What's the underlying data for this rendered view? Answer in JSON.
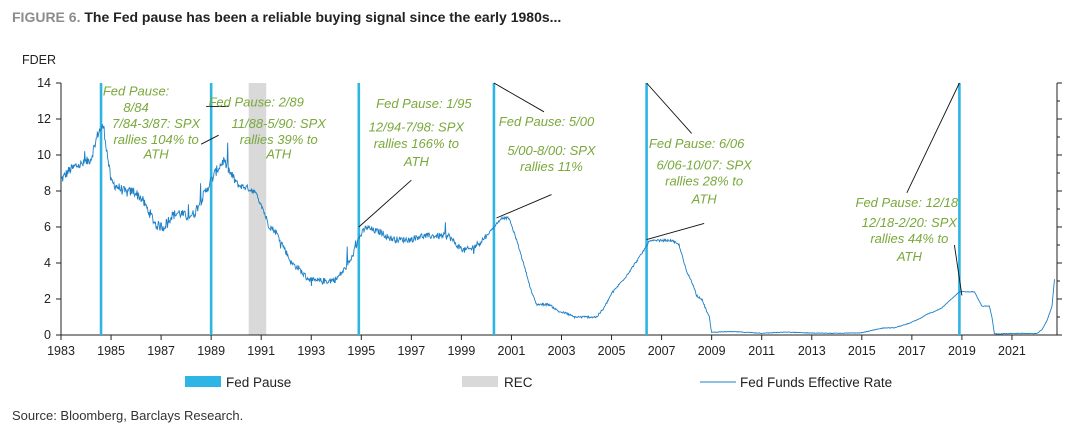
{
  "figure": {
    "number": "FIGURE 6.",
    "title": "The Fed pause has been a reliable buying signal since the early 1980s..."
  },
  "source": "Source: Bloomberg, Barclays Research.",
  "colors": {
    "pause": "#2fb4e6",
    "rate": "#1e7fc4",
    "rec": "#d9d9d9",
    "annotation": "#79a83b",
    "axis": "#222222"
  },
  "chart_data": {
    "type": "line",
    "ylabel": "FDER",
    "ylim": [
      0,
      14
    ],
    "yticks": [
      0,
      2,
      4,
      6,
      8,
      10,
      12,
      14
    ],
    "xlim": [
      1983,
      2022.8
    ],
    "xticks": [
      1983,
      1985,
      1987,
      1989,
      1991,
      1993,
      1995,
      1997,
      1999,
      2001,
      2003,
      2005,
      2007,
      2009,
      2011,
      2013,
      2015,
      2017,
      2019,
      2021
    ],
    "legend": [
      {
        "name": "Fed Pause",
        "kind": "bar"
      },
      {
        "name": "REC",
        "kind": "shade"
      },
      {
        "name": "Fed Funds Effective Rate",
        "kind": "line"
      }
    ],
    "fed_pauses": [
      1984.6,
      1989.0,
      1994.9,
      2000.3,
      2006.4,
      2018.9
    ],
    "recessions": [
      [
        1990.5,
        1991.2
      ]
    ],
    "series": [
      {
        "name": "Fed Funds Effective Rate",
        "x": [
          1983.0,
          1983.3,
          1983.6,
          1983.9,
          1984.2,
          1984.5,
          1984.7,
          1985.0,
          1985.3,
          1985.6,
          1985.9,
          1986.2,
          1986.5,
          1986.8,
          1987.1,
          1987.4,
          1987.7,
          1988.0,
          1988.3,
          1988.6,
          1988.9,
          1989.2,
          1989.5,
          1989.8,
          1990.1,
          1990.4,
          1990.7,
          1991.0,
          1991.3,
          1991.6,
          1991.9,
          1992.2,
          1992.5,
          1992.8,
          1993.1,
          1993.4,
          1993.7,
          1994.0,
          1994.3,
          1994.6,
          1994.9,
          1995.2,
          1995.5,
          1995.8,
          1996.1,
          1996.4,
          1996.7,
          1997.0,
          1997.3,
          1997.6,
          1997.9,
          1998.2,
          1998.5,
          1998.8,
          1999.1,
          1999.4,
          1999.7,
          2000.0,
          2000.3,
          2000.6,
          2000.9,
          2001.2,
          2001.5,
          2001.8,
          2002.0,
          2002.5,
          2002.9,
          2003.2,
          2003.5,
          2003.8,
          2004.1,
          2004.4,
          2004.7,
          2005.0,
          2005.3,
          2005.6,
          2005.9,
          2006.2,
          2006.5,
          2006.8,
          2007.1,
          2007.4,
          2007.7,
          2008.0,
          2008.2,
          2008.4,
          2008.6,
          2008.9,
          2009.0,
          2009.5,
          2010.0,
          2011.0,
          2012.0,
          2013.0,
          2014.0,
          2015.0,
          2015.9,
          2016.3,
          2016.9,
          2017.3,
          2017.6,
          2017.9,
          2018.2,
          2018.5,
          2018.9,
          2019.2,
          2019.5,
          2019.8,
          2020.1,
          2020.2,
          2020.3,
          2021.0,
          2021.5,
          2022.0,
          2022.2,
          2022.4,
          2022.6,
          2022.7
        ],
        "values": [
          8.6,
          9.1,
          9.4,
          9.5,
          9.8,
          11.3,
          11.6,
          8.5,
          8.2,
          7.9,
          8.0,
          7.6,
          6.9,
          6.1,
          6.0,
          6.6,
          6.8,
          6.6,
          6.7,
          7.5,
          8.3,
          9.1,
          9.7,
          8.9,
          8.3,
          8.2,
          8.0,
          7.3,
          6.1,
          5.7,
          4.9,
          4.0,
          3.7,
          3.2,
          3.0,
          3.0,
          3.0,
          3.1,
          3.6,
          4.2,
          5.4,
          6.0,
          5.8,
          5.7,
          5.4,
          5.3,
          5.3,
          5.3,
          5.5,
          5.5,
          5.5,
          5.5,
          5.5,
          5.0,
          4.7,
          4.8,
          5.1,
          5.5,
          6.0,
          6.5,
          6.5,
          5.3,
          3.9,
          2.4,
          1.7,
          1.7,
          1.3,
          1.2,
          1.0,
          1.0,
          1.0,
          1.0,
          1.5,
          2.3,
          2.8,
          3.3,
          3.9,
          4.5,
          5.2,
          5.25,
          5.25,
          5.25,
          5.0,
          3.5,
          3.0,
          2.2,
          2.0,
          1.0,
          0.15,
          0.18,
          0.18,
          0.1,
          0.16,
          0.11,
          0.09,
          0.13,
          0.4,
          0.4,
          0.65,
          0.9,
          1.15,
          1.3,
          1.5,
          1.9,
          2.4,
          2.4,
          2.4,
          1.6,
          1.6,
          1.0,
          0.06,
          0.08,
          0.09,
          0.08,
          0.3,
          0.8,
          1.6,
          3.1
        ]
      }
    ],
    "annotations": [
      {
        "text": "Fed Pause:",
        "x": 1986.0,
        "y": 13.3,
        "anchor": "middle"
      },
      {
        "text": "8/84",
        "x": 1986.0,
        "y": 12.4,
        "anchor": "middle"
      },
      {
        "text": "7/84-3/87: SPX",
        "x": 1986.8,
        "y": 11.5,
        "anchor": "middle"
      },
      {
        "text": "rallies 104% to",
        "x": 1986.8,
        "y": 10.6,
        "anchor": "middle"
      },
      {
        "text": "ATH",
        "x": 1986.8,
        "y": 9.8,
        "anchor": "middle"
      },
      {
        "text": "Fed Pause: 2/89",
        "x": 1990.8,
        "y": 12.7,
        "anchor": "middle"
      },
      {
        "text": "11/88-5/90: SPX",
        "x": 1991.7,
        "y": 11.5,
        "anchor": "middle"
      },
      {
        "text": "rallies 39% to",
        "x": 1991.7,
        "y": 10.6,
        "anchor": "middle"
      },
      {
        "text": "ATH",
        "x": 1991.7,
        "y": 9.8,
        "anchor": "middle"
      },
      {
        "text": "Fed Pause: 1/95",
        "x": 1997.5,
        "y": 12.6,
        "anchor": "middle"
      },
      {
        "text": "12/94-7/98: SPX",
        "x": 1997.2,
        "y": 11.3,
        "anchor": "middle"
      },
      {
        "text": "rallies 166% to",
        "x": 1997.2,
        "y": 10.4,
        "anchor": "middle"
      },
      {
        "text": "ATH",
        "x": 1997.2,
        "y": 9.4,
        "anchor": "middle"
      },
      {
        "text": "Fed Pause: 5/00",
        "x": 2002.4,
        "y": 11.6,
        "anchor": "middle"
      },
      {
        "text": "5/00-8/00: SPX",
        "x": 2002.6,
        "y": 10.0,
        "anchor": "middle"
      },
      {
        "text": "rallies 11%",
        "x": 2002.6,
        "y": 9.1,
        "anchor": "middle"
      },
      {
        "text": "Fed Pause:  6/06",
        "x": 2008.4,
        "y": 10.4,
        "anchor": "middle"
      },
      {
        "text": "6/06-10/07: SPX",
        "x": 2008.7,
        "y": 9.2,
        "anchor": "middle"
      },
      {
        "text": "rallies 28% to",
        "x": 2008.7,
        "y": 8.3,
        "anchor": "middle"
      },
      {
        "text": "ATH",
        "x": 2008.7,
        "y": 7.3,
        "anchor": "middle"
      },
      {
        "text": "Fed Pause: 12/18",
        "x": 2016.8,
        "y": 7.1,
        "anchor": "middle"
      },
      {
        "text": "12/18-2/20: SPX",
        "x": 2016.9,
        "y": 6.0,
        "anchor": "middle"
      },
      {
        "text": "rallies 44% to",
        "x": 2016.9,
        "y": 5.1,
        "anchor": "middle"
      },
      {
        "text": "ATH",
        "x": 2016.9,
        "y": 4.1,
        "anchor": "middle"
      }
    ],
    "leaders": [
      {
        "x1": 1988.6,
        "y1": 10.6,
        "x2": 1989.3,
        "y2": 11.1
      },
      {
        "x1": 1988.8,
        "y1": 12.7,
        "x2": 1989.7,
        "y2": 12.7
      },
      {
        "x1": 1994.9,
        "y1": 6.0,
        "x2": 1997.0,
        "y2": 8.6
      },
      {
        "x1": 2000.3,
        "y1": 14.0,
        "x2": 2002.3,
        "y2": 12.4
      },
      {
        "x1": 2000.4,
        "y1": 6.5,
        "x2": 2002.6,
        "y2": 7.8
      },
      {
        "x1": 2006.4,
        "y1": 14.0,
        "x2": 2008.2,
        "y2": 11.2
      },
      {
        "x1": 2006.4,
        "y1": 5.3,
        "x2": 2008.7,
        "y2": 6.2
      },
      {
        "x1": 2018.9,
        "y1": 14.0,
        "x2": 2016.8,
        "y2": 7.9
      },
      {
        "x1": 2018.7,
        "y1": 5.0,
        "x2": 2019.0,
        "y2": 2.2
      }
    ]
  }
}
